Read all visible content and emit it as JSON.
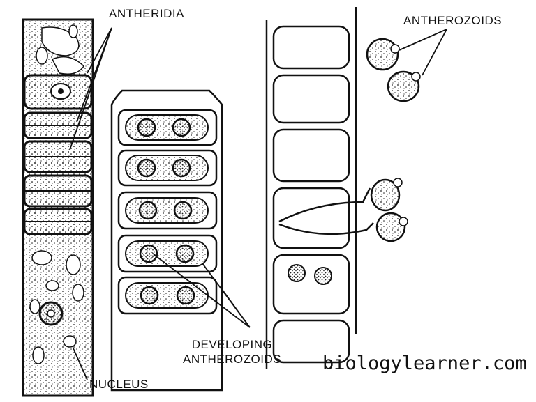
{
  "labels": {
    "antheridia": "ANTHERIDIA",
    "antherozoids": "ANTHEROZOIDS",
    "developing_line1": "DEVELOPING",
    "developing_line2": "ANTHEROZOIDS",
    "nucleus": "NUCLEUS"
  },
  "watermark": "biologylearner.com"
}
